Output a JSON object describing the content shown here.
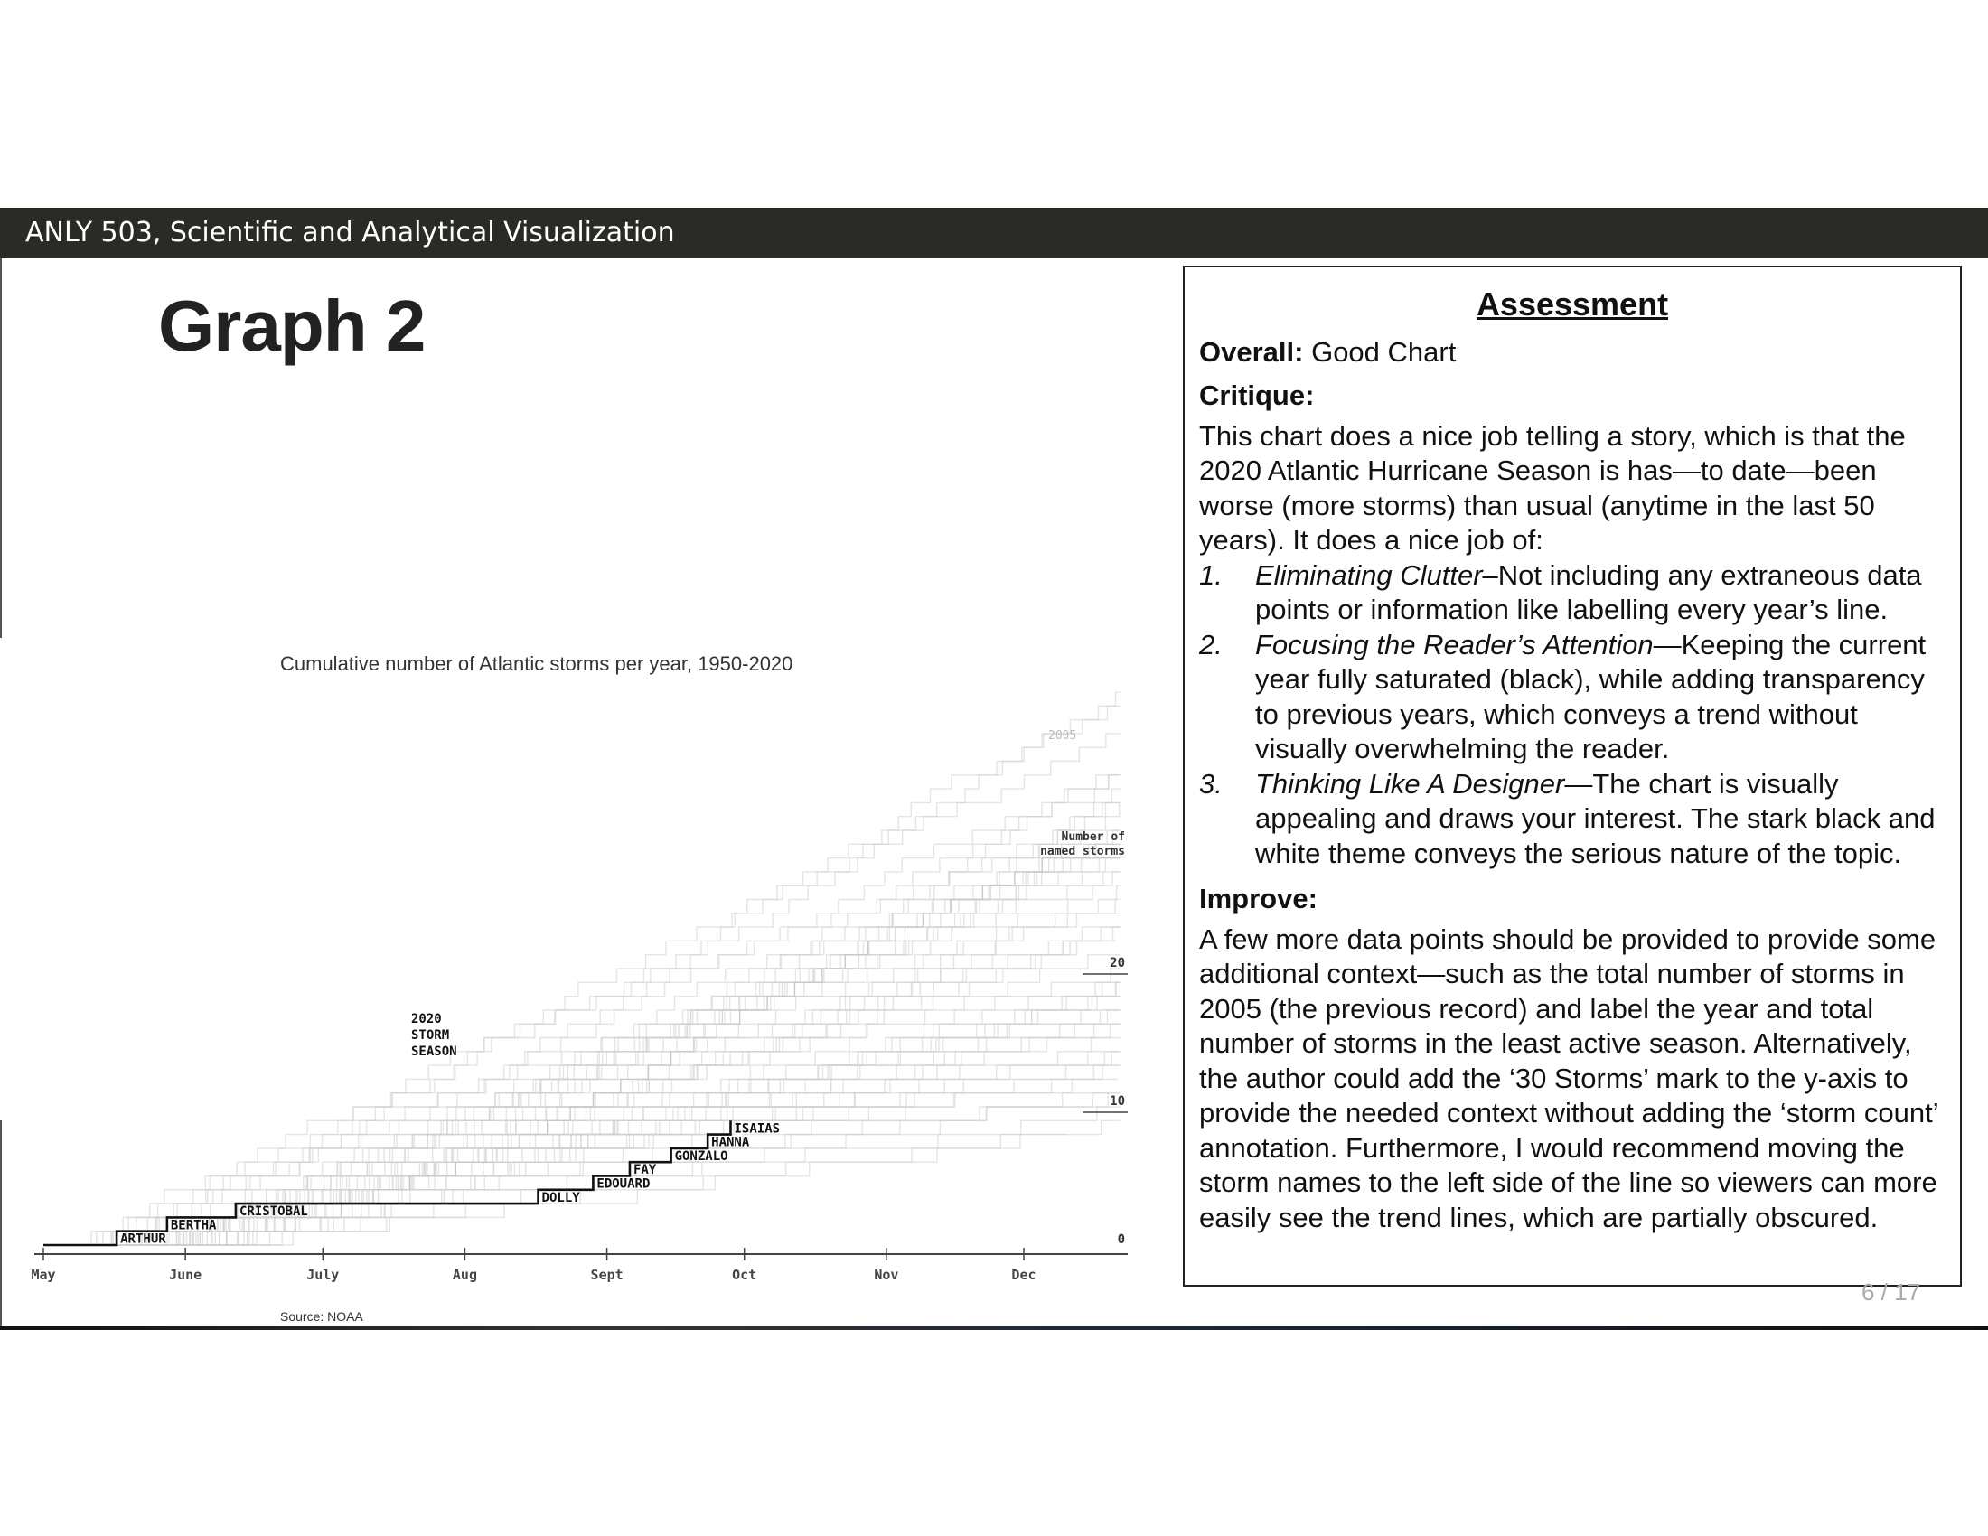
{
  "header": {
    "course_title": "ANLY 503, Scientific and Analytical Visualization"
  },
  "graph_title": "Graph 2",
  "chart_data": {
    "type": "line",
    "title": "Cumulative number of Atlantic storms per year, 1950-2020",
    "source": "Source: NOAA",
    "x_axis_months": [
      "May",
      "June",
      "July",
      "Aug",
      "Sept",
      "Oct",
      "Nov",
      "Dec"
    ],
    "y_axis_title_line1": "Number of",
    "y_axis_title_line2": "named storms",
    "y_ticks": [
      "20",
      "10",
      "0"
    ],
    "highlight_year_label": "2005",
    "season_label": [
      "2020",
      "STORM",
      "SEASON"
    ],
    "series": [
      {
        "name": "2020",
        "color": "#111111",
        "storms": [
          "ARTHUR",
          "BERTHA",
          "CRISTOBAL",
          "DOLLY",
          "EDOUARD",
          "FAY",
          "GONZALO",
          "HANNA",
          "ISAIAS"
        ],
        "step_days_from_may1": [
          16,
          27,
          42,
          108,
          120,
          128,
          137,
          145,
          150
        ],
        "values": [
          1,
          2,
          3,
          4,
          5,
          6,
          7,
          8,
          9
        ]
      }
    ],
    "background_series_color": "#cfcfcf"
  },
  "assessment": {
    "title": "Assessment",
    "overall_label": "Overall:",
    "overall_value": "Good Chart",
    "critique_label": "Critique:",
    "critique_intro": "This chart does a nice job telling a story, which is that the 2020 Atlantic Hurricane Season is has—to date—been worse (more storms) than usual (anytime in the last 50 years). It does a nice job of:",
    "items": [
      {
        "num": "1.",
        "title": "Eliminating Clutter",
        "text": "–Not including any extraneous data points or information like labelling every year’s line."
      },
      {
        "num": "2.",
        "title": "Focusing the Reader’s Attention",
        "text": "—Keeping the current year fully saturated (black), while adding transparency to previous years, which conveys a trend without visually overwhelming the reader."
      },
      {
        "num": "3.",
        "title": "Thinking Like A Designer",
        "text": "—The chart is visually appealing and draws your interest. The stark black and white theme conveys the serious nature of the topic."
      }
    ],
    "improve_label": "Improve:",
    "improve_text": "A few more data points should be provided to provide some additional context—such as the total number of storms in 2005 (the previous record) and label the year and total number of storms in the least active season. Alternatively, the author could add the ‘30 Storms’ mark to the y-axis to provide the needed context without adding the ‘storm count’ annotation. Furthermore, I would recommend moving the storm names to the left side of the line so viewers can more easily see the trend lines, which are partially obscured."
  },
  "page_number": "6 / 17"
}
